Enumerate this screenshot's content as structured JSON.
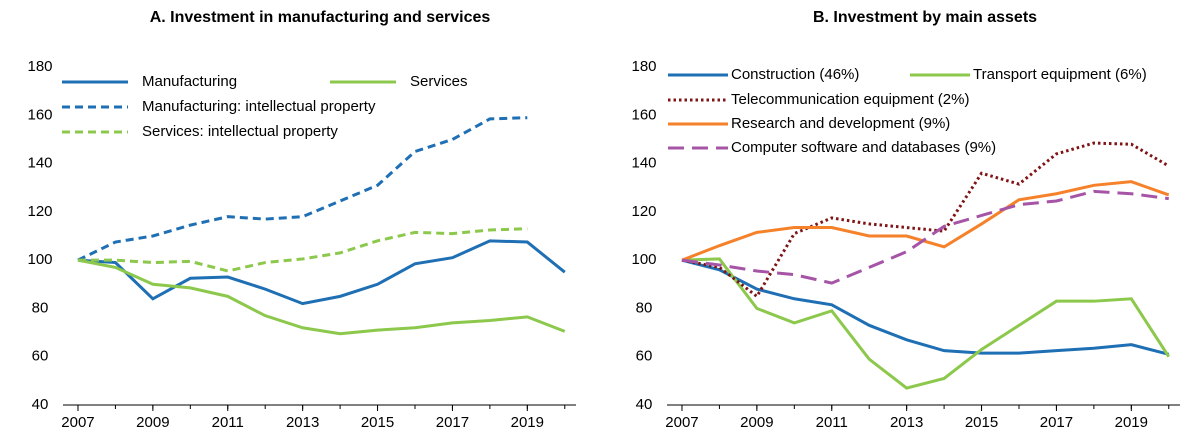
{
  "chart_data": [
    {
      "type": "line",
      "title": "A. Investment in manufacturing and services",
      "x": [
        2007,
        2008,
        2009,
        2010,
        2011,
        2012,
        2013,
        2014,
        2015,
        2016,
        2017,
        2018,
        2019,
        2020
      ],
      "xlim": [
        2006.6,
        2020.3
      ],
      "xticks": [
        2007,
        2009,
        2011,
        2013,
        2015,
        2017,
        2019
      ],
      "ylim": [
        40,
        180
      ],
      "yticks": [
        40,
        60,
        80,
        100,
        120,
        140,
        160,
        180
      ],
      "grid": false,
      "series": [
        {
          "name": "Manufacturing",
          "color": "#1f6fb4",
          "style": "solid",
          "values": [
            100,
            99,
            84,
            92.5,
            93,
            88,
            82,
            85,
            90,
            98.5,
            101,
            108,
            107.5,
            95
          ]
        },
        {
          "name": "Services",
          "color": "#8cc84b",
          "style": "solid",
          "values": [
            100,
            97,
            90,
            88.5,
            85,
            77,
            72,
            69.5,
            71,
            72,
            74,
            75,
            76.5,
            70.5
          ]
        },
        {
          "name": "Manufacturing: intellectual property",
          "color": "#1f6fb4",
          "style": "dashed",
          "values": [
            100,
            107.5,
            110,
            114.5,
            118,
            117,
            118,
            124.5,
            131,
            145,
            150,
            158.5,
            159,
            null
          ]
        },
        {
          "name": "Services: intellectual property",
          "color": "#8cc84b",
          "style": "dashed",
          "values": [
            100,
            100,
            99,
            99.5,
            95.5,
            99,
            100.5,
            103,
            108,
            111.5,
            111,
            112.5,
            113,
            null
          ]
        }
      ]
    },
    {
      "type": "line",
      "title": "B. Investment by main assets",
      "x": [
        2007,
        2008,
        2009,
        2010,
        2011,
        2012,
        2013,
        2014,
        2015,
        2016,
        2017,
        2018,
        2019,
        2020
      ],
      "xlim": [
        2006.6,
        2020.3
      ],
      "xticks": [
        2007,
        2009,
        2011,
        2013,
        2015,
        2017,
        2019
      ],
      "ylim": [
        40,
        180
      ],
      "yticks": [
        40,
        60,
        80,
        100,
        120,
        140,
        160,
        180
      ],
      "grid": false,
      "series": [
        {
          "name": "Construction (46%)",
          "color": "#1f6fb4",
          "style": "solid",
          "values": [
            100,
            96,
            88,
            84,
            81.5,
            73,
            67,
            62.5,
            61.5,
            61.5,
            62.5,
            63.5,
            65,
            61
          ]
        },
        {
          "name": "Transport equipment (6%)",
          "color": "#8cc84b",
          "style": "solid",
          "values": [
            100,
            100.5,
            80,
            74,
            79,
            59,
            47,
            51,
            63,
            73,
            83,
            83,
            84,
            60
          ]
        },
        {
          "name": "Telecommunication equipment (2%)",
          "color": "#7f1416",
          "style": "dotted",
          "values": [
            100,
            97,
            85,
            111,
            117.5,
            115,
            113.5,
            112,
            136,
            131.5,
            144,
            148.5,
            148,
            139
          ]
        },
        {
          "name": "Research and development (9%)",
          "color": "#f5822a",
          "style": "solid",
          "values": [
            100,
            106,
            111.5,
            113.5,
            113.5,
            110,
            110,
            105.5,
            115,
            125,
            127.5,
            131,
            132.5,
            127
          ]
        },
        {
          "name": "Computer software and databases (9%)",
          "color": "#a655a6",
          "style": "longdash",
          "values": [
            100,
            98,
            95.5,
            94,
            90.5,
            97,
            103.5,
            114,
            118.5,
            123,
            124.5,
            128.5,
            127.5,
            125.5
          ]
        }
      ]
    }
  ]
}
